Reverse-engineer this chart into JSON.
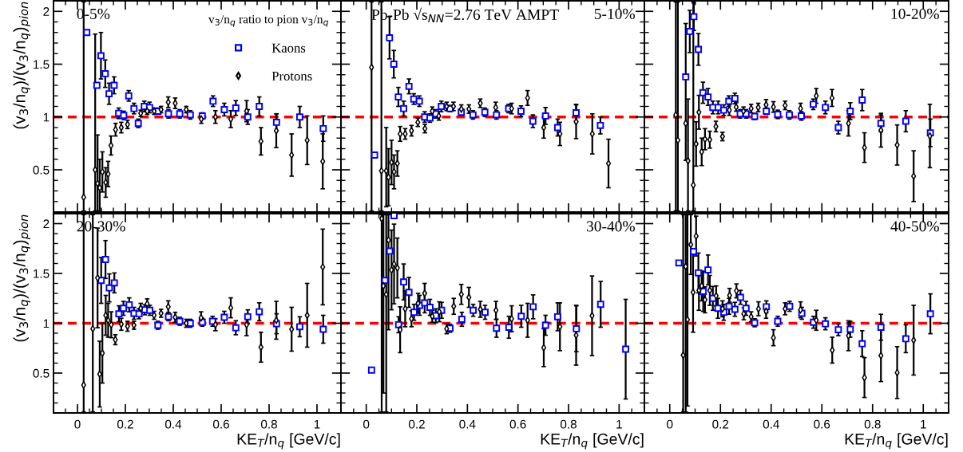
{
  "chart_data": [
    {
      "type": "scatter",
      "title": "0-5%",
      "ylabel": "(v$_{3}$/n$_{q}$)/(v$_{3}$/n$_{q}$)$_{pion}$",
      "legend": "top right",
      "legend_title": "v$_{3}$/n$_{q}$ ratio to pion v$_{3}$/n$_{q}$",
      "xlim": [
        -0.1,
        1.1
      ],
      "ylim": [
        0.1,
        2.1
      ],
      "xticks": [
        0,
        0.2,
        0.4,
        0.6,
        0.8,
        1
      ],
      "yticks": [
        0.5,
        1,
        1.5,
        2
      ],
      "tick_labels": "y",
      "ref_lines": [
        {
          "axis": "y",
          "value": 1,
          "color": "#ff0000",
          "line_style": "dashed"
        }
      ],
      "series": [
        {
          "name": "Kaons",
          "color": "#0000ff",
          "marker": "square",
          "x": [
            0.039,
            0.081,
            0.098,
            0.116,
            0.132,
            0.153,
            0.172,
            0.193,
            0.214,
            0.236,
            0.254,
            0.279,
            0.301,
            0.336,
            0.38,
            0.427,
            0.471,
            0.521,
            0.566,
            0.613,
            0.661,
            0.711,
            0.759,
            0.831,
            0.928,
            1.026
          ],
          "values": [
            1.8,
            1.3,
            1.58,
            1.41,
            1.22,
            1.3,
            1.035,
            1.015,
            1.2,
            1.08,
            0.94,
            1.1,
            1.09,
            1.055,
            1.03,
            1.03,
            1.02,
            1.01,
            1.15,
            1.07,
            1.085,
            1.0,
            1.1,
            0.95,
            1.0,
            0.89
          ],
          "errors": [
            null,
            null,
            0.22,
            0.13,
            0.1,
            0.08,
            0.05,
            0.04,
            0.05,
            0.05,
            0.04,
            0.05,
            0.05,
            0.03,
            0.04,
            0.04,
            0.04,
            0.03,
            0.05,
            0.06,
            0.07,
            0.07,
            0.09,
            0.08,
            0.1,
            0.12
          ]
        },
        {
          "name": "Protons",
          "color": "#000000",
          "marker": "diamond",
          "x": [
            0.026,
            0.074,
            0.084,
            0.093,
            0.104,
            0.118,
            0.128,
            0.14,
            0.159,
            0.183,
            0.209,
            0.264,
            0.291,
            0.32,
            0.349,
            0.379,
            0.408,
            0.454,
            0.517,
            0.576,
            0.64,
            0.706,
            0.766,
            0.83,
            0.894,
            0.959,
            1.024
          ],
          "values": [
            0.24,
            0.5,
            0.37,
            0.33,
            0.48,
            0.38,
            0.46,
            0.73,
            0.88,
            0.9,
            0.93,
            1.035,
            1.055,
            1.055,
            1.07,
            1.14,
            1.13,
            1.07,
            0.98,
            1.0,
            0.98,
            1.055,
            0.77,
            0.87,
            0.64,
            0.78,
            0.58
          ],
          "errors": [
            [
              0.11,
              2.09
            ],
            [
              0.11,
              1.785
            ],
            [
              0.11,
              0.83
            ],
            [
              0.11,
              0.6
            ],
            0.19,
            0.14,
            0.12,
            0.09,
            0.06,
            0.05,
            0.04,
            0.03,
            0.03,
            0.03,
            0.03,
            0.05,
            0.05,
            0.03,
            0.04,
            0.06,
            0.08,
            0.1,
            0.13,
            0.16,
            0.2,
            0.23,
            0.26
          ]
        }
      ]
    },
    {
      "type": "scatter",
      "title": "5-10%",
      "annotations": [
        "Pb-Pb √s$_{NN}$=2.76 TeV AMPT"
      ],
      "xlim": [
        -0.1,
        1.1
      ],
      "ylim": [
        0.1,
        2.1
      ],
      "xticks": [
        0,
        0.2,
        0.4,
        0.6,
        0.8,
        1
      ],
      "yticks": [
        0.5,
        1,
        1.5,
        2
      ],
      "tick_labels": false,
      "ref_lines": [
        {
          "axis": "y",
          "value": 1,
          "color": "#ff0000",
          "line_style": "dashed"
        }
      ],
      "series": [
        {
          "color": "#0000ff",
          "marker": "square",
          "x": [
            0.033,
            0.092,
            0.109,
            0.127,
            0.148,
            0.169,
            0.188,
            0.21,
            0.231,
            0.252,
            0.275,
            0.297,
            0.331,
            0.376,
            0.422,
            0.469,
            0.515,
            0.563,
            0.612,
            0.659,
            0.709,
            0.757,
            0.83,
            0.926
          ],
          "values": [
            0.64,
            1.75,
            1.5,
            1.19,
            1.08,
            1.29,
            1.17,
            1.15,
            1.0,
            0.99,
            1.03,
            1.1,
            1.08,
            1.045,
            1.02,
            1.045,
            1.02,
            1.08,
            1.055,
            0.96,
            1.01,
            0.9,
            1.04,
            0.92
          ],
          "errors": [
            null,
            0.2,
            0.13,
            0.09,
            0.07,
            0.07,
            0.05,
            0.05,
            0.05,
            0.04,
            0.04,
            0.05,
            0.03,
            0.03,
            0.04,
            0.04,
            0.04,
            0.04,
            0.05,
            0.06,
            0.08,
            0.08,
            0.08,
            0.08
          ]
        },
        {
          "color": "#000000",
          "marker": "diamond",
          "x": [
            0.021,
            0.06,
            0.079,
            0.088,
            0.1,
            0.11,
            0.123,
            0.134,
            0.154,
            0.179,
            0.204,
            0.232,
            0.261,
            0.287,
            0.318,
            0.345,
            0.376,
            0.406,
            0.451,
            0.512,
            0.575,
            0.638,
            0.702,
            0.766,
            0.83,
            0.894,
            0.958
          ],
          "values": [
            1.47,
            0.49,
            0.49,
            0.43,
            0.57,
            0.48,
            0.56,
            0.84,
            0.84,
            0.87,
            0.95,
            0.89,
            1.055,
            1.01,
            1.1,
            1.1,
            1.075,
            1.075,
            1.13,
            1.09,
            1.08,
            1.18,
            0.9,
            0.84,
            0.955,
            0.84,
            0.56
          ],
          "errors": [
            [
              0.11,
              2.09
            ],
            [
              0.11,
              2.09
            ],
            [
              0.15,
              0.9
            ],
            0.27,
            0.21,
            0.16,
            0.12,
            0.07,
            0.05,
            0.05,
            0.04,
            0.04,
            0.04,
            0.04,
            0.04,
            0.04,
            0.04,
            0.04,
            0.04,
            0.05,
            0.05,
            0.07,
            0.1,
            0.11,
            0.16,
            0.19,
            0.23
          ]
        }
      ]
    },
    {
      "type": "scatter",
      "title": "10-20%",
      "xlim": [
        -0.1,
        1.1
      ],
      "ylim": [
        0.1,
        2.1
      ],
      "xticks": [
        0,
        0.2,
        0.4,
        0.6,
        0.8,
        1
      ],
      "yticks": [
        0.5,
        1,
        1.5,
        2
      ],
      "tick_labels": false,
      "ref_lines": [
        {
          "axis": "y",
          "value": 1,
          "color": "#ff0000",
          "line_style": "dashed"
        }
      ],
      "series": [
        {
          "color": "#0000ff",
          "marker": "square",
          "x": [
            0.063,
            0.079,
            0.095,
            0.113,
            0.131,
            0.151,
            0.17,
            0.191,
            0.213,
            0.233,
            0.257,
            0.278,
            0.301,
            0.335,
            0.381,
            0.426,
            0.472,
            0.519,
            0.566,
            0.614,
            0.665,
            0.712,
            0.759,
            0.833,
            0.931,
            1.028
          ],
          "values": [
            1.38,
            1.81,
            1.95,
            1.64,
            1.23,
            1.19,
            1.09,
            1.09,
            1.065,
            1.15,
            1.175,
            1.03,
            1.03,
            1.005,
            1.055,
            1.025,
            1.02,
            1.01,
            1.12,
            1.09,
            0.9,
            1.055,
            1.16,
            0.94,
            0.96,
            0.85
          ],
          "errors": [
            null,
            0.2,
            0.13,
            0.15,
            0.1,
            0.08,
            0.06,
            0.06,
            0.05,
            0.05,
            0.05,
            0.04,
            0.04,
            0.03,
            0.03,
            0.04,
            0.04,
            0.04,
            0.05,
            0.06,
            0.06,
            0.08,
            0.1,
            0.08,
            0.1,
            0.13
          ]
        },
        {
          "color": "#000000",
          "marker": "diamond",
          "x": [
            0.024,
            0.032,
            0.063,
            0.072,
            0.093,
            0.104,
            0.115,
            0.126,
            0.139,
            0.158,
            0.182,
            0.208,
            0.235,
            0.262,
            0.291,
            0.321,
            0.349,
            0.38,
            0.409,
            0.455,
            0.516,
            0.578,
            0.64,
            0.705,
            0.768,
            0.833,
            0.897,
            0.962,
            1.026
          ],
          "values": [
            1.02,
            0.78,
            0.94,
            0.585,
            0.355,
            0.745,
            1.045,
            0.67,
            0.79,
            0.785,
            0.91,
            0.815,
            1.065,
            1.095,
            1.055,
            1.08,
            1.09,
            1.115,
            1.095,
            1.11,
            1.08,
            1.2,
            1.18,
            0.94,
            0.71,
            0.875,
            0.735,
            0.44,
            0.82
          ],
          "errors": [
            [
              0.11,
              2.09
            ],
            [
              0.11,
              2.09
            ],
            [
              0.59,
              1.885
            ],
            [
              0.11,
              1.17
            ],
            [
              0.11,
              2.09
            ],
            0.21,
            0.16,
            0.13,
            0.1,
            0.08,
            0.05,
            0.04,
            0.05,
            0.04,
            0.04,
            0.04,
            0.04,
            0.05,
            0.05,
            0.04,
            0.05,
            0.07,
            0.08,
            0.12,
            0.14,
            0.16,
            0.19,
            0.24,
            0.3
          ]
        }
      ]
    },
    {
      "type": "scatter",
      "title": "20-30%",
      "ylabel": "(v$_{3}$/n$_{q}$)/(v$_{3}$/n$_{q}$)$_{pion}$",
      "xlabel": "KE$_{T}$/n$_{q}$ [GeV/c]",
      "xlim": [
        -0.1,
        1.1
      ],
      "ylim": [
        0.1,
        2.1
      ],
      "xticks": [
        0,
        0.2,
        0.4,
        0.6,
        0.8,
        1
      ],
      "yticks": [
        0.5,
        1,
        1.5,
        2
      ],
      "ref_lines": [
        {
          "axis": "y",
          "value": 1,
          "color": "#ff0000",
          "line_style": "dashed"
        }
      ],
      "series": [
        {
          "color": "#0000ff",
          "marker": "square",
          "x": [
            0.099,
            0.117,
            0.133,
            0.154,
            0.173,
            0.192,
            0.216,
            0.236,
            0.257,
            0.281,
            0.302,
            0.336,
            0.38,
            0.427,
            0.471,
            0.521,
            0.564,
            0.613,
            0.661,
            0.711,
            0.759,
            0.831,
            0.928,
            1.026
          ],
          "values": [
            1.43,
            1.64,
            1.355,
            1.405,
            1.095,
            1.15,
            1.185,
            1.1,
            1.095,
            1.135,
            1.13,
            0.98,
            1.065,
            1.02,
            1.0,
            1.01,
            1.02,
            1.06,
            0.955,
            1.065,
            1.115,
            0.995,
            0.965,
            0.94
          ],
          "errors": [
            0.23,
            0.19,
            0.14,
            0.1,
            0.08,
            0.07,
            0.07,
            0.06,
            0.05,
            0.05,
            0.05,
            0.04,
            0.04,
            0.04,
            0.04,
            0.04,
            0.05,
            0.06,
            0.07,
            0.07,
            0.09,
            0.1,
            0.1,
            0.14
          ]
        },
        {
          "color": "#000000",
          "marker": "diamond",
          "x": [
            0.026,
            0.064,
            0.084,
            0.093,
            0.104,
            0.118,
            0.128,
            0.141,
            0.158,
            0.183,
            0.209,
            0.236,
            0.264,
            0.291,
            0.32,
            0.349,
            0.379,
            0.408,
            0.454,
            0.516,
            0.576,
            0.64,
            0.706,
            0.766,
            0.83,
            0.894,
            0.959,
            1.024
          ],
          "values": [
            0.38,
            0.945,
            1.455,
            0.49,
            0.7,
            1.08,
            1.03,
            0.985,
            0.835,
            0.99,
            0.97,
            0.98,
            1.15,
            1.195,
            1.08,
            1.1,
            1.165,
            1.06,
            1.0,
            1.055,
            0.985,
            1.155,
            0.985,
            0.76,
            1.03,
            0.94,
            1.08,
            1.565
          ],
          "errors": [
            [
              0.11,
              2.09
            ],
            [
              0.11,
              2.09
            ],
            0.5,
            0.33,
            0.3,
            0.2,
            0.17,
            0.13,
            0.05,
            0.06,
            0.05,
            0.04,
            0.05,
            0.05,
            0.04,
            0.04,
            0.06,
            0.05,
            0.04,
            0.06,
            0.06,
            0.1,
            0.11,
            0.15,
            0.19,
            0.22,
            0.32,
            0.38
          ]
        }
      ]
    },
    {
      "type": "scatter",
      "title": "30-40%",
      "xlabel": "KE$_{T}$/n$_{q}$ [GeV/c]",
      "xlim": [
        -0.1,
        1.1
      ],
      "ylim": [
        0.1,
        2.1
      ],
      "xticks": [
        0,
        0.2,
        0.4,
        0.6,
        0.8,
        1
      ],
      "yticks": [
        0.5,
        1,
        1.5,
        2
      ],
      "tick_labels": "x",
      "ref_lines": [
        {
          "axis": "y",
          "value": 1,
          "color": "#ff0000",
          "line_style": "dashed"
        }
      ],
      "series": [
        {
          "color": "#0000ff",
          "marker": "square",
          "x": [
            0.021,
            0.074,
            0.093,
            0.11,
            0.128,
            0.148,
            0.169,
            0.189,
            0.211,
            0.231,
            0.252,
            0.275,
            0.298,
            0.331,
            0.378,
            0.423,
            0.47,
            0.515,
            0.564,
            0.613,
            0.66,
            0.709,
            0.757,
            0.831,
            0.927,
            1.026
          ],
          "values": [
            0.53,
            1.43,
            1.725,
            2.08,
            0.985,
            1.415,
            1.31,
            1.11,
            1.18,
            1.205,
            1.16,
            1.075,
            1.13,
            0.95,
            1.04,
            1.13,
            1.11,
            0.95,
            0.96,
            1.07,
            1.165,
            0.98,
            1.065,
            0.945,
            1.19,
            0.74
          ],
          "errors": [
            null,
            null,
            null,
            null,
            0.08,
            0.18,
            0.15,
            0.08,
            0.1,
            0.1,
            0.08,
            0.07,
            0.08,
            0.04,
            0.07,
            0.06,
            0.07,
            0.09,
            0.11,
            0.11,
            0.12,
            0.1,
            0.14,
            0.23,
            0.23,
            0.5
          ]
        },
        {
          "color": "#000000",
          "marker": "diamond",
          "x": [
            0.061,
            0.068,
            0.079,
            0.088,
            0.1,
            0.11,
            0.123,
            0.134,
            0.154,
            0.179,
            0.205,
            0.231,
            0.261,
            0.289,
            0.318,
            0.346,
            0.376,
            0.406,
            0.451,
            0.513,
            0.575,
            0.638,
            0.702,
            0.766,
            0.83,
            0.893
          ],
          "values": [
            2.05,
            1.375,
            1.29,
            1.835,
            1.535,
            1.595,
            1.555,
            0.935,
            1.145,
            1.045,
            1.2,
            1.3,
            1.07,
            1.115,
            0.945,
            1.17,
            1.29,
            1.26,
            1.14,
            1.13,
            1.045,
            1.03,
            0.755,
            0.965,
            0.88,
            1.075
          ],
          "errors": [
            [
              0.11,
              2.09
            ],
            [
              0.3,
              2.09
            ],
            [
              0.11,
              2.09
            ],
            [
              0.935,
              2.09
            ],
            0.4,
            0.4,
            0.3,
            0.23,
            0.18,
            0.08,
            0.1,
            0.1,
            0.06,
            0.1,
            0.05,
            0.08,
            0.1,
            0.1,
            0.08,
            0.09,
            0.13,
            0.17,
            0.19,
            0.24,
            0.3,
            0.4
          ]
        }
      ]
    },
    {
      "type": "scatter",
      "title": "40-50%",
      "xlabel": "KE$_{T}$/n$_{q}$ [GeV/c]",
      "xlim": [
        -0.1,
        1.1
      ],
      "ylim": [
        0.1,
        2.1
      ],
      "xticks": [
        0,
        0.2,
        0.4,
        0.6,
        0.8,
        1
      ],
      "yticks": [
        0.5,
        1,
        1.5,
        2
      ],
      "tick_labels": "x",
      "ref_lines": [
        {
          "axis": "y",
          "value": 1,
          "color": "#ff0000",
          "line_style": "dashed"
        }
      ],
      "series": [
        {
          "color": "#0000ff",
          "marker": "square",
          "x": [
            0.036,
            0.094,
            0.113,
            0.132,
            0.151,
            0.17,
            0.19,
            0.213,
            0.234,
            0.257,
            0.279,
            0.301,
            0.335,
            0.381,
            0.426,
            0.473,
            0.521,
            0.567,
            0.614,
            0.665,
            0.712,
            0.759,
            0.833,
            0.931,
            1.028
          ],
          "values": [
            1.605,
            1.72,
            1.505,
            1.32,
            1.535,
            1.25,
            1.15,
            1.11,
            1.17,
            1.14,
            1.26,
            1.15,
            1.005,
            1.165,
            1.02,
            1.17,
            1.1,
            1.01,
            0.995,
            0.935,
            0.94,
            0.795,
            0.96,
            0.845,
            1.095
          ],
          "errors": [
            null,
            null,
            0.2,
            0.2,
            0.15,
            0.12,
            0.1,
            0.08,
            0.08,
            0.07,
            0.07,
            0.07,
            0.04,
            0.06,
            0.05,
            0.05,
            0.06,
            0.06,
            0.06,
            0.06,
            0.08,
            0.13,
            0.13,
            0.14,
            0.2
          ]
        },
        {
          "color": "#000000",
          "marker": "diamond",
          "x": [
            0.053,
            0.063,
            0.07,
            0.083,
            0.092,
            0.104,
            0.115,
            0.126,
            0.139,
            0.158,
            0.183,
            0.208,
            0.236,
            0.263,
            0.292,
            0.321,
            0.35,
            0.38,
            0.409,
            0.455,
            0.516,
            0.578,
            0.641,
            0.705,
            0.768,
            0.833,
            0.897,
            0.962
          ],
          "values": [
            0.68,
            1.57,
            1.037,
            1.79,
            1.31,
            1.875,
            1.33,
            1.375,
            1.235,
            1.33,
            1.275,
            1.145,
            1.28,
            1.325,
            1.095,
            1.065,
            1.145,
            1.12,
            0.855,
            1.145,
            1.135,
            1.03,
            0.73,
            0.875,
            0.455,
            0.675,
            0.505,
            0.83
          ],
          "errors": [
            [
              0.11,
              2.09
            ],
            [
              0.11,
              2.09
            ],
            [
              0.17,
              2.09
            ],
            0.3,
            0.4,
            0.2,
            0.2,
            0.15,
            0.13,
            0.15,
            0.1,
            0.08,
            0.07,
            0.07,
            0.06,
            0.05,
            0.07,
            0.07,
            0.08,
            0.06,
            0.08,
            0.1,
            0.13,
            0.15,
            0.2,
            0.26,
            0.26,
            0.35
          ]
        }
      ]
    }
  ]
}
